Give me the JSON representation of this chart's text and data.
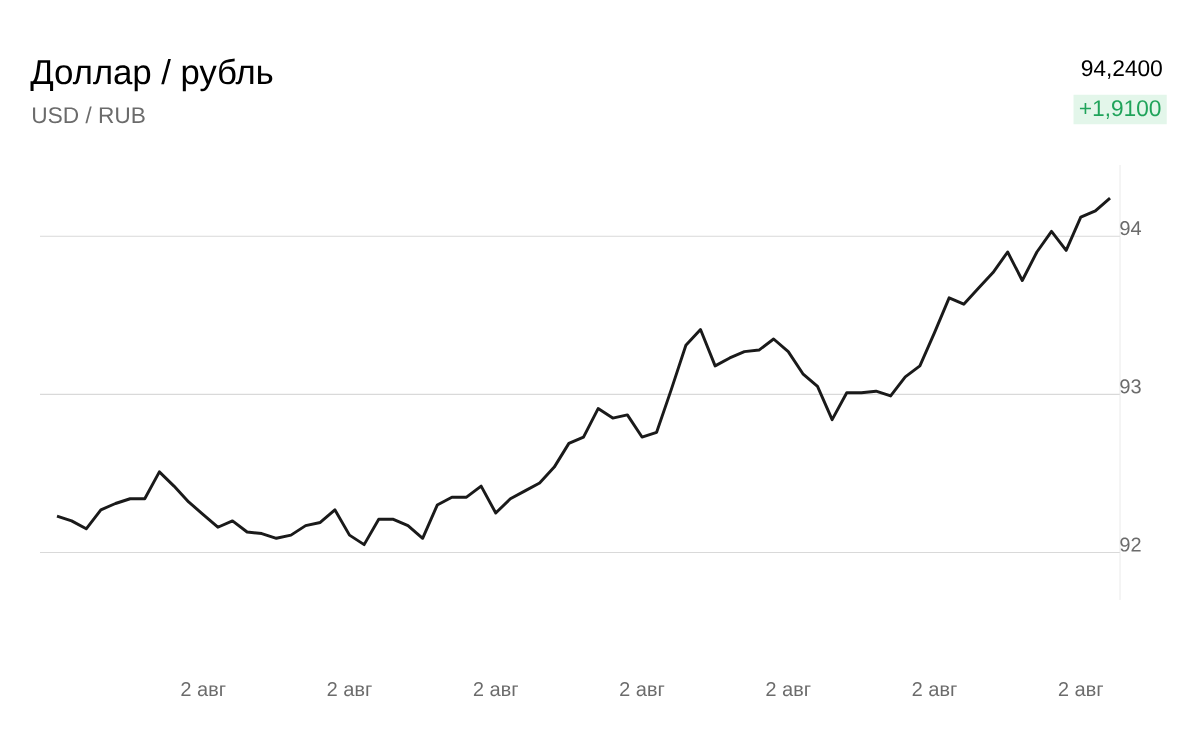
{
  "chart_data": {
    "type": "line",
    "title": "Доллар / рубль",
    "subtitle": "USD / RUB",
    "annotations": [
      "94,2400",
      "+1,9100"
    ],
    "categories": [
      null,
      null,
      null,
      null,
      null,
      null,
      null,
      null,
      null,
      null,
      "2 авг",
      null,
      null,
      null,
      null,
      null,
      null,
      null,
      null,
      null,
      "2 авг",
      null,
      null,
      null,
      null,
      null,
      null,
      null,
      null,
      null,
      "2 авг",
      null,
      null,
      null,
      null,
      null,
      null,
      null,
      null,
      null,
      "2 авг",
      null,
      null,
      null,
      null,
      null,
      null,
      null,
      null,
      null,
      "2 авг",
      null,
      null,
      null,
      null,
      null,
      null,
      null,
      null,
      null,
      "2 авг",
      null,
      null,
      null,
      null,
      null,
      null,
      null,
      null,
      null,
      "2 авг",
      null,
      null
    ],
    "series": [
      {
        "color": "#1a1a1a",
        "values": [
          92.23,
          92.2,
          92.15,
          92.27,
          92.31,
          92.34,
          92.34,
          92.51,
          92.42,
          92.32,
          92.24,
          92.16,
          92.2,
          92.13,
          92.12,
          92.09,
          92.11,
          92.17,
          92.19,
          92.27,
          92.11,
          92.05,
          92.21,
          92.21,
          92.17,
          92.09,
          92.3,
          92.35,
          92.35,
          92.42,
          92.25,
          92.34,
          92.39,
          92.44,
          92.54,
          92.69,
          92.73,
          92.91,
          92.85,
          92.87,
          92.73,
          92.76,
          93.03,
          93.31,
          93.41,
          93.18,
          93.23,
          93.27,
          93.28,
          93.35,
          93.27,
          93.13,
          93.05,
          92.84,
          93.01,
          93.01,
          93.02,
          92.99,
          93.11,
          93.18,
          93.39,
          93.61,
          93.57,
          93.67,
          93.77,
          93.9,
          93.72,
          93.9,
          94.03,
          93.91,
          94.12,
          94.16,
          94.24
        ]
      }
    ],
    "ylim": [
      91.7,
      94.45
    ],
    "yticks": [
      92,
      93,
      94
    ],
    "grid": "y",
    "marker": "none",
    "line_style": "solid"
  }
}
